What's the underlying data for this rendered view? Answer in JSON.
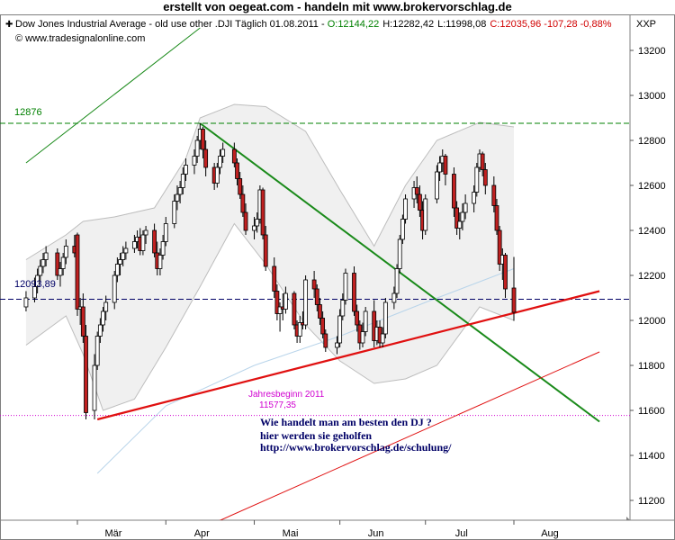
{
  "banner": "erstellt von oegeat.com  - handeln mit  www.brokervorschlag.de",
  "header": {
    "instrument": "Dow Jones Industrial Average - old use other .DJI Täglich  01.08.2011 - ",
    "open": "O:12144,22",
    "high": "H:12282,42",
    "low": "L:11998,08",
    "close": "C:12035,96 -107,28 -0,88%",
    "source": "© www.tradesignalonline.com",
    "symbol": "XXP"
  },
  "annotations": {
    "resistance": "12876",
    "current": "12093,89",
    "year_start_label": "Jahresbeginn 2011",
    "year_start_value": "11577,35"
  },
  "promo": {
    "line1": "Wie handelt man am besten  den DJ ?",
    "line2": "hier werden sie geholfen",
    "line3": "http://www.brokervorschlag.de/schulung/"
  },
  "colors": {
    "up": "#ffffff",
    "down": "#c02020",
    "trend_green": "#1a8a1a",
    "trend_red": "#e01010",
    "magenta": "#d000d0",
    "navy": "#000066"
  },
  "chart_data": {
    "type": "candlestick",
    "title": "Dow Jones Industrial Average - old use other .DJI Täglich 01.08.2011",
    "ylim": [
      11100,
      13300
    ],
    "y_ticks": [
      11200,
      11400,
      11600,
      11800,
      12000,
      12200,
      12400,
      12600,
      12800,
      13000,
      13200
    ],
    "x_ticks": [
      "Mär",
      "Apr",
      "Mai",
      "Jun",
      "Jul",
      "Aug"
    ],
    "grid": false,
    "start_date": "2011-02-11",
    "candles": [
      {
        "d": "2011-02-11",
        "o": 12060,
        "h": 12130,
        "l": 12040,
        "c": 12100
      },
      {
        "d": "2011-02-14",
        "o": 12100,
        "h": 12190,
        "l": 12080,
        "c": 12150
      },
      {
        "d": "2011-02-15",
        "o": 12150,
        "h": 12230,
        "l": 12120,
        "c": 12200
      },
      {
        "d": "2011-02-16",
        "o": 12200,
        "h": 12270,
        "l": 12170,
        "c": 12240
      },
      {
        "d": "2011-02-17",
        "o": 12240,
        "h": 12300,
        "l": 12210,
        "c": 12270
      },
      {
        "d": "2011-02-18",
        "o": 12270,
        "h": 12330,
        "l": 12240,
        "c": 12300
      },
      {
        "d": "2011-02-22",
        "o": 12300,
        "h": 12320,
        "l": 12180,
        "c": 12200
      },
      {
        "d": "2011-02-23",
        "o": 12200,
        "h": 12260,
        "l": 12150,
        "c": 12230
      },
      {
        "d": "2011-02-24",
        "o": 12230,
        "h": 12300,
        "l": 12200,
        "c": 12280
      },
      {
        "d": "2011-02-25",
        "o": 12280,
        "h": 12360,
        "l": 12250,
        "c": 12330
      },
      {
        "d": "2011-02-28",
        "o": 12330,
        "h": 12380,
        "l": 12280,
        "c": 12300
      },
      {
        "d": "2011-03-01",
        "o": 12380,
        "h": 12390,
        "l": 12020,
        "c": 12050
      },
      {
        "d": "2011-03-02",
        "o": 12050,
        "h": 12100,
        "l": 11980,
        "c": 12060
      },
      {
        "d": "2011-03-03",
        "o": 12060,
        "h": 12120,
        "l": 11900,
        "c": 11930
      },
      {
        "d": "2011-03-04",
        "o": 11930,
        "h": 11980,
        "l": 11560,
        "c": 11590
      },
      {
        "d": "2011-03-07",
        "o": 11600,
        "h": 11850,
        "l": 11560,
        "c": 11800
      },
      {
        "d": "2011-03-08",
        "o": 11800,
        "h": 11950,
        "l": 11780,
        "c": 11930
      },
      {
        "d": "2011-03-09",
        "o": 11930,
        "h": 12010,
        "l": 11900,
        "c": 11980
      },
      {
        "d": "2011-03-10",
        "o": 11980,
        "h": 12060,
        "l": 11950,
        "c": 12040
      },
      {
        "d": "2011-03-11",
        "o": 12040,
        "h": 12110,
        "l": 12000,
        "c": 12080
      },
      {
        "d": "2011-03-14",
        "o": 12080,
        "h": 12220,
        "l": 12050,
        "c": 12200
      },
      {
        "d": "2011-03-15",
        "o": 12200,
        "h": 12280,
        "l": 12170,
        "c": 12250
      },
      {
        "d": "2011-03-16",
        "o": 12250,
        "h": 12300,
        "l": 12200,
        "c": 12270
      },
      {
        "d": "2011-03-17",
        "o": 12270,
        "h": 12330,
        "l": 12240,
        "c": 12300
      },
      {
        "d": "2011-03-18",
        "o": 12300,
        "h": 12350,
        "l": 12270,
        "c": 12320
      },
      {
        "d": "2011-03-21",
        "o": 12320,
        "h": 12380,
        "l": 12300,
        "c": 12350
      },
      {
        "d": "2011-03-22",
        "o": 12350,
        "h": 12400,
        "l": 12320,
        "c": 12370
      },
      {
        "d": "2011-03-23",
        "o": 12370,
        "h": 12410,
        "l": 12290,
        "c": 12310
      },
      {
        "d": "2011-03-24",
        "o": 12310,
        "h": 12400,
        "l": 12290,
        "c": 12380
      },
      {
        "d": "2011-03-25",
        "o": 12380,
        "h": 12420,
        "l": 12340,
        "c": 12400
      },
      {
        "d": "2011-03-28",
        "o": 12400,
        "h": 12430,
        "l": 12280,
        "c": 12300
      },
      {
        "d": "2011-03-29",
        "o": 12300,
        "h": 12350,
        "l": 12200,
        "c": 12230
      },
      {
        "d": "2011-03-30",
        "o": 12230,
        "h": 12320,
        "l": 12200,
        "c": 12290
      },
      {
        "d": "2011-03-31",
        "o": 12290,
        "h": 12380,
        "l": 12270,
        "c": 12350
      },
      {
        "d": "2011-04-01",
        "o": 12350,
        "h": 12460,
        "l": 12330,
        "c": 12430
      },
      {
        "d": "2011-04-04",
        "o": 12430,
        "h": 12560,
        "l": 12410,
        "c": 12530
      },
      {
        "d": "2011-04-05",
        "o": 12530,
        "h": 12600,
        "l": 12490,
        "c": 12560
      },
      {
        "d": "2011-04-06",
        "o": 12560,
        "h": 12620,
        "l": 12520,
        "c": 12590
      },
      {
        "d": "2011-04-07",
        "o": 12590,
        "h": 12680,
        "l": 12560,
        "c": 12650
      },
      {
        "d": "2011-04-08",
        "o": 12650,
        "h": 12720,
        "l": 12620,
        "c": 12690
      },
      {
        "d": "2011-04-11",
        "o": 12690,
        "h": 12760,
        "l": 12650,
        "c": 12730
      },
      {
        "d": "2011-04-12",
        "o": 12730,
        "h": 12820,
        "l": 12700,
        "c": 12800
      },
      {
        "d": "2011-04-13",
        "o": 12800,
        "h": 12876,
        "l": 12760,
        "c": 12850
      },
      {
        "d": "2011-04-14",
        "o": 12850,
        "h": 12860,
        "l": 12720,
        "c": 12760
      },
      {
        "d": "2011-04-15",
        "o": 12760,
        "h": 12800,
        "l": 12640,
        "c": 12680
      },
      {
        "d": "2011-04-18",
        "o": 12680,
        "h": 12700,
        "l": 12580,
        "c": 12610
      },
      {
        "d": "2011-04-19",
        "o": 12610,
        "h": 12700,
        "l": 12590,
        "c": 12680
      },
      {
        "d": "2011-04-20",
        "o": 12680,
        "h": 12760,
        "l": 12650,
        "c": 12730
      },
      {
        "d": "2011-04-21",
        "o": 12730,
        "h": 12790,
        "l": 12700,
        "c": 12760
      },
      {
        "d": "2011-04-25",
        "o": 12760,
        "h": 12790,
        "l": 12680,
        "c": 12700
      },
      {
        "d": "2011-04-26",
        "o": 12700,
        "h": 12720,
        "l": 12600,
        "c": 12630
      },
      {
        "d": "2011-04-27",
        "o": 12630,
        "h": 12660,
        "l": 12540,
        "c": 12560
      },
      {
        "d": "2011-04-28",
        "o": 12560,
        "h": 12600,
        "l": 12460,
        "c": 12480
      },
      {
        "d": "2011-04-29",
        "o": 12480,
        "h": 12520,
        "l": 12380,
        "c": 12400
      },
      {
        "d": "2011-05-02",
        "o": 12400,
        "h": 12460,
        "l": 12360,
        "c": 12420
      },
      {
        "d": "2011-05-03",
        "o": 12420,
        "h": 12480,
        "l": 12390,
        "c": 12450
      },
      {
        "d": "2011-05-04",
        "o": 12450,
        "h": 12600,
        "l": 12430,
        "c": 12580
      },
      {
        "d": "2011-05-05",
        "o": 12580,
        "h": 12590,
        "l": 12360,
        "c": 12380
      },
      {
        "d": "2011-05-06",
        "o": 12380,
        "h": 12420,
        "l": 12220,
        "c": 12240
      },
      {
        "d": "2011-05-09",
        "o": 12240,
        "h": 12280,
        "l": 12100,
        "c": 12130
      },
      {
        "d": "2011-05-10",
        "o": 12130,
        "h": 12160,
        "l": 12000,
        "c": 12030
      },
      {
        "d": "2011-05-11",
        "o": 12030,
        "h": 12080,
        "l": 11950,
        "c": 12060
      },
      {
        "d": "2011-05-12",
        "o": 12060,
        "h": 12120,
        "l": 12000,
        "c": 12050
      },
      {
        "d": "2011-05-13",
        "o": 12050,
        "h": 12150,
        "l": 12030,
        "c": 12120
      },
      {
        "d": "2011-05-16",
        "o": 12120,
        "h": 12130,
        "l": 11960,
        "c": 11980
      },
      {
        "d": "2011-05-17",
        "o": 11980,
        "h": 12000,
        "l": 11900,
        "c": 11930
      },
      {
        "d": "2011-05-18",
        "o": 11930,
        "h": 12020,
        "l": 11900,
        "c": 11990
      },
      {
        "d": "2011-05-19",
        "o": 11990,
        "h": 12040,
        "l": 11960,
        "c": 11980
      },
      {
        "d": "2011-05-20",
        "o": 11980,
        "h": 12200,
        "l": 11960,
        "c": 12180
      },
      {
        "d": "2011-05-23",
        "o": 12180,
        "h": 12220,
        "l": 12100,
        "c": 12140
      },
      {
        "d": "2011-05-24",
        "o": 12140,
        "h": 12160,
        "l": 12040,
        "c": 12070
      },
      {
        "d": "2011-05-25",
        "o": 12070,
        "h": 12100,
        "l": 11980,
        "c": 12010
      },
      {
        "d": "2011-05-26",
        "o": 12010,
        "h": 12040,
        "l": 11920,
        "c": 11940
      },
      {
        "d": "2011-05-27",
        "o": 11940,
        "h": 11960,
        "l": 11860,
        "c": 11880
      },
      {
        "d": "2011-05-31",
        "o": 11880,
        "h": 11930,
        "l": 11850,
        "c": 11900
      },
      {
        "d": "2011-06-01",
        "o": 11900,
        "h": 12050,
        "l": 11880,
        "c": 12020
      },
      {
        "d": "2011-06-02",
        "o": 12020,
        "h": 12120,
        "l": 12000,
        "c": 12090
      },
      {
        "d": "2011-06-03",
        "o": 12090,
        "h": 12230,
        "l": 12070,
        "c": 12210
      },
      {
        "d": "2011-06-06",
        "o": 12210,
        "h": 12240,
        "l": 12020,
        "c": 12040
      },
      {
        "d": "2011-06-07",
        "o": 12040,
        "h": 12070,
        "l": 11950,
        "c": 11980
      },
      {
        "d": "2011-06-08",
        "o": 11980,
        "h": 12000,
        "l": 11870,
        "c": 11900
      },
      {
        "d": "2011-06-09",
        "o": 11900,
        "h": 11990,
        "l": 11880,
        "c": 11950
      },
      {
        "d": "2011-06-10",
        "o": 11950,
        "h": 12060,
        "l": 11930,
        "c": 12040
      },
      {
        "d": "2011-06-13",
        "o": 12040,
        "h": 12090,
        "l": 11880,
        "c": 11910
      },
      {
        "d": "2011-06-14",
        "o": 11910,
        "h": 12000,
        "l": 11890,
        "c": 11970
      },
      {
        "d": "2011-06-15",
        "o": 11970,
        "h": 12000,
        "l": 11880,
        "c": 11900
      },
      {
        "d": "2011-06-16",
        "o": 11900,
        "h": 11970,
        "l": 11880,
        "c": 11940
      },
      {
        "d": "2011-06-17",
        "o": 11940,
        "h": 12100,
        "l": 11920,
        "c": 12080
      },
      {
        "d": "2011-06-20",
        "o": 12080,
        "h": 12150,
        "l": 12050,
        "c": 12120
      },
      {
        "d": "2011-06-21",
        "o": 12120,
        "h": 12250,
        "l": 12100,
        "c": 12230
      },
      {
        "d": "2011-06-22",
        "o": 12230,
        "h": 12380,
        "l": 12210,
        "c": 12360
      },
      {
        "d": "2011-06-23",
        "o": 12360,
        "h": 12470,
        "l": 12340,
        "c": 12450
      },
      {
        "d": "2011-06-24",
        "o": 12450,
        "h": 12560,
        "l": 12430,
        "c": 12540
      },
      {
        "d": "2011-06-27",
        "o": 12540,
        "h": 12620,
        "l": 12500,
        "c": 12590
      },
      {
        "d": "2011-06-28",
        "o": 12590,
        "h": 12640,
        "l": 12520,
        "c": 12560
      },
      {
        "d": "2011-06-29",
        "o": 12560,
        "h": 12600,
        "l": 12460,
        "c": 12490
      },
      {
        "d": "2011-06-30",
        "o": 12490,
        "h": 12530,
        "l": 12360,
        "c": 12400
      },
      {
        "d": "2011-07-01",
        "o": 12400,
        "h": 12560,
        "l": 12380,
        "c": 12540
      },
      {
        "d": "2011-07-05",
        "o": 12540,
        "h": 12690,
        "l": 12520,
        "c": 12660
      },
      {
        "d": "2011-07-06",
        "o": 12660,
        "h": 12730,
        "l": 12620,
        "c": 12700
      },
      {
        "d": "2011-07-07",
        "o": 12700,
        "h": 12760,
        "l": 12660,
        "c": 12730
      },
      {
        "d": "2011-07-08",
        "o": 12730,
        "h": 12740,
        "l": 12600,
        "c": 12650
      },
      {
        "d": "2011-07-11",
        "o": 12650,
        "h": 12680,
        "l": 12460,
        "c": 12500
      },
      {
        "d": "2011-07-12",
        "o": 12500,
        "h": 12530,
        "l": 12380,
        "c": 12410
      },
      {
        "d": "2011-07-13",
        "o": 12410,
        "h": 12480,
        "l": 12360,
        "c": 12440
      },
      {
        "d": "2011-07-14",
        "o": 12440,
        "h": 12520,
        "l": 12400,
        "c": 12480
      },
      {
        "d": "2011-07-15",
        "o": 12480,
        "h": 12560,
        "l": 12450,
        "c": 12520
      },
      {
        "d": "2011-07-18",
        "o": 12520,
        "h": 12600,
        "l": 12480,
        "c": 12570
      },
      {
        "d": "2011-07-19",
        "o": 12570,
        "h": 12700,
        "l": 12550,
        "c": 12680
      },
      {
        "d": "2011-07-20",
        "o": 12680,
        "h": 12760,
        "l": 12660,
        "c": 12740
      },
      {
        "d": "2011-07-21",
        "o": 12740,
        "h": 12750,
        "l": 12640,
        "c": 12670
      },
      {
        "d": "2011-07-22",
        "o": 12670,
        "h": 12700,
        "l": 12560,
        "c": 12600
      },
      {
        "d": "2011-07-25",
        "o": 12600,
        "h": 12640,
        "l": 12480,
        "c": 12510
      },
      {
        "d": "2011-07-26",
        "o": 12510,
        "h": 12540,
        "l": 12380,
        "c": 12400
      },
      {
        "d": "2011-07-27",
        "o": 12400,
        "h": 12420,
        "l": 12220,
        "c": 12250
      },
      {
        "d": "2011-07-28",
        "o": 12250,
        "h": 12320,
        "l": 12180,
        "c": 12290
      },
      {
        "d": "2011-07-29",
        "o": 12290,
        "h": 12300,
        "l": 12100,
        "c": 12140
      },
      {
        "d": "2011-08-01",
        "o": 12144,
        "h": 12282,
        "l": 11998,
        "c": 12036
      }
    ],
    "bollinger": {
      "upper": [
        [
          "2011-02-11",
          12270
        ],
        [
          "2011-02-25",
          12380
        ],
        [
          "2011-03-03",
          12440
        ],
        [
          "2011-03-14",
          12460
        ],
        [
          "2011-03-28",
          12500
        ],
        [
          "2011-04-08",
          12720
        ],
        [
          "2011-04-13",
          12900
        ],
        [
          "2011-04-25",
          12960
        ],
        [
          "2011-05-06",
          12950
        ],
        [
          "2011-05-20",
          12840
        ],
        [
          "2011-06-01",
          12580
        ],
        [
          "2011-06-13",
          12330
        ],
        [
          "2011-06-24",
          12600
        ],
        [
          "2011-07-05",
          12800
        ],
        [
          "2011-07-20",
          12880
        ],
        [
          "2011-08-01",
          12860
        ]
      ],
      "lower": [
        [
          "2011-02-11",
          11890
        ],
        [
          "2011-02-25",
          12020
        ],
        [
          "2011-03-03",
          11850
        ],
        [
          "2011-03-10",
          11600
        ],
        [
          "2011-03-21",
          11650
        ],
        [
          "2011-04-01",
          11880
        ],
        [
          "2011-04-13",
          12150
        ],
        [
          "2011-04-25",
          12430
        ],
        [
          "2011-05-06",
          12250
        ],
        [
          "2011-05-20",
          11980
        ],
        [
          "2011-06-01",
          11820
        ],
        [
          "2011-06-13",
          11720
        ],
        [
          "2011-06-24",
          11740
        ],
        [
          "2011-07-05",
          11800
        ],
        [
          "2011-07-20",
          12060
        ],
        [
          "2011-08-01",
          12000
        ]
      ]
    },
    "moving_average": [
      [
        "2011-03-08",
        11320
      ],
      [
        "2011-04-01",
        11620
      ],
      [
        "2011-05-02",
        11800
      ],
      [
        "2011-06-01",
        11930
      ],
      [
        "2011-07-01",
        12080
      ],
      [
        "2011-08-01",
        12230
      ]
    ],
    "resistance_level": 12876,
    "current_level": 12093.89,
    "year_start_level": 11577.35,
    "trendlines": {
      "green_upper": [
        [
          "2011-02-11",
          12700
        ],
        [
          "2011-04-13",
          13300
        ]
      ],
      "green_down": [
        [
          "2011-04-13",
          12876
        ],
        [
          "2011-08-31",
          11550
        ]
      ],
      "red_support": [
        [
          "2011-03-08",
          11560
        ],
        [
          "2011-08-31",
          12130
        ]
      ],
      "red_thin": [
        [
          "2011-04-18",
          11100
        ],
        [
          "2011-08-31",
          11860
        ]
      ]
    }
  }
}
